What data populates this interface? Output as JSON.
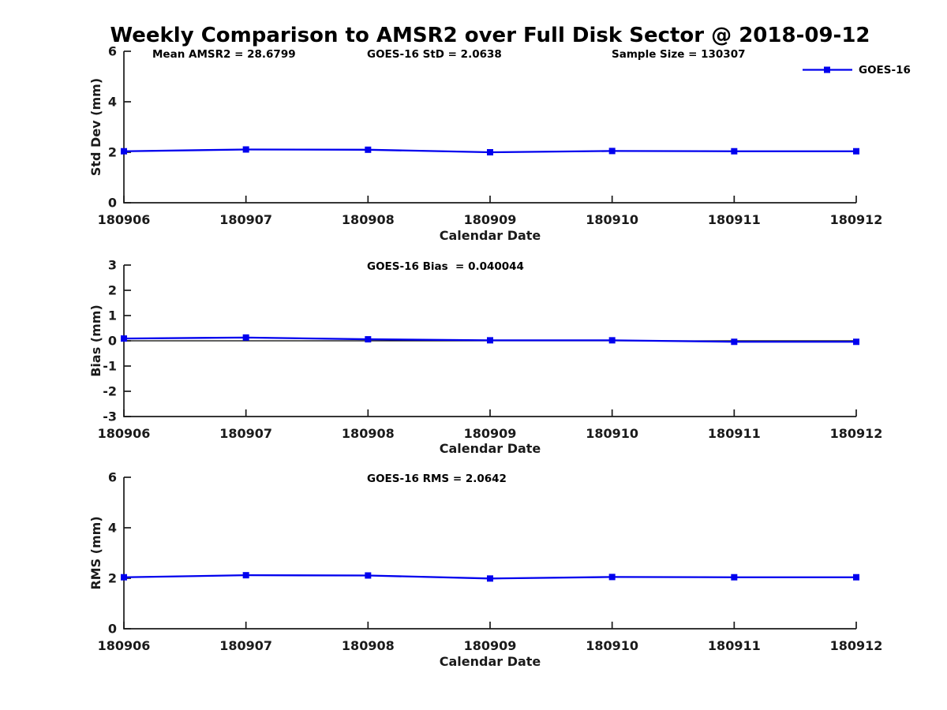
{
  "figure": {
    "title": "Weekly Comparison to AMSR2 over Full Disk Sector @ 2018-09-12",
    "background_color": "#ffffff",
    "accent_color": "#0000ee",
    "axis_color": "#1a1a1a",
    "zero_line_color": "#000000"
  },
  "legend": {
    "label": "GOES-16",
    "position": "top-right"
  },
  "chart_data": [
    {
      "type": "line",
      "name": "std-dev",
      "x": [
        "180906",
        "180907",
        "180908",
        "180909",
        "180910",
        "180911",
        "180912"
      ],
      "xlabel": "Calendar Date",
      "ylabel": "Std Dev (mm)",
      "ylim": [
        0,
        6
      ],
      "yticks": [
        0,
        2,
        4,
        6
      ],
      "grid": false,
      "legend_entries": [
        "GOES-16"
      ],
      "annotations": [
        "Mean AMSR2 = 28.6799",
        "GOES-16 StD = 2.0638",
        "Sample Size = 130307"
      ],
      "series": [
        {
          "name": "GOES-16",
          "color": "#0000ee",
          "marker": "square",
          "values": [
            2.04,
            2.11,
            2.1,
            2.0,
            2.05,
            2.04,
            2.04
          ]
        }
      ]
    },
    {
      "type": "line",
      "name": "bias",
      "x": [
        "180906",
        "180907",
        "180908",
        "180909",
        "180910",
        "180911",
        "180912"
      ],
      "xlabel": "Calendar Date",
      "ylabel": "Bias (mm)",
      "ylim": [
        -3,
        3
      ],
      "yticks": [
        -3,
        -2,
        -1,
        0,
        1,
        2,
        3
      ],
      "zero_line": true,
      "grid": false,
      "annotations": [
        "GOES-16 Bias  = 0.040044"
      ],
      "series": [
        {
          "name": "GOES-16",
          "color": "#0000ee",
          "marker": "square",
          "values": [
            0.09,
            0.13,
            0.06,
            0.02,
            0.02,
            -0.04,
            -0.04
          ]
        }
      ]
    },
    {
      "type": "line",
      "name": "rms",
      "x": [
        "180906",
        "180907",
        "180908",
        "180909",
        "180910",
        "180911",
        "180912"
      ],
      "xlabel": "Calendar Date",
      "ylabel": "RMS (mm)",
      "ylim": [
        0,
        6
      ],
      "yticks": [
        0,
        2,
        4,
        6
      ],
      "grid": false,
      "annotations": [
        "GOES-16 RMS = 2.0642"
      ],
      "series": [
        {
          "name": "GOES-16",
          "color": "#0000ee",
          "marker": "square",
          "values": [
            2.04,
            2.12,
            2.11,
            1.99,
            2.05,
            2.04,
            2.04
          ]
        }
      ]
    }
  ]
}
